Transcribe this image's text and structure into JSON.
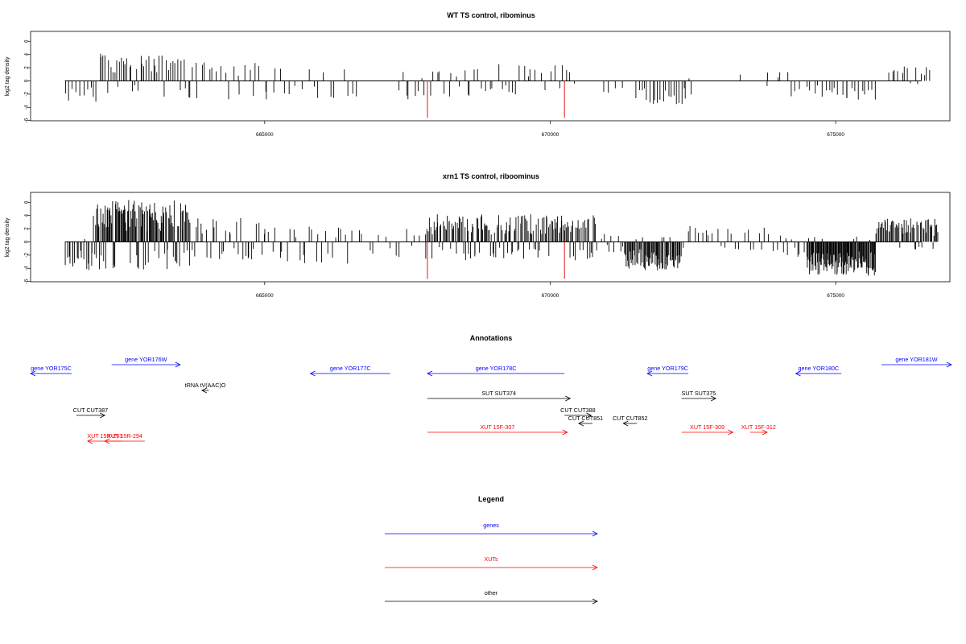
{
  "chart_data": [
    {
      "type": "bar",
      "title": "WT TS control, ribominus",
      "ylabel": "log2 tag density",
      "xlim": [
        660900,
        677000
      ],
      "ylim": [
        -6,
        7
      ],
      "yticks": [
        "6",
        "4",
        "2",
        "0",
        "-2",
        "-4",
        "-6"
      ],
      "xticks": [
        "665000",
        "670000",
        "675000"
      ],
      "grid": false,
      "marked_positions": [
        667850,
        670250
      ],
      "seed": 11,
      "clusters": [
        {
          "start": 661500,
          "end": 662100,
          "count": 10,
          "sense": 0.05,
          "posMax": 2.0,
          "negMax": 3.3
        },
        {
          "start": 662100,
          "end": 662800,
          "count": 22,
          "sense": 0.8,
          "posMax": 4.2,
          "negMax": 2.2
        },
        {
          "start": 662800,
          "end": 663800,
          "count": 26,
          "sense": 0.75,
          "posMax": 4.0,
          "negMax": 2.8
        },
        {
          "start": 663800,
          "end": 665300,
          "count": 22,
          "sense": 0.65,
          "posMax": 2.8,
          "negMax": 2.8
        },
        {
          "start": 665300,
          "end": 666700,
          "count": 14,
          "sense": 0.4,
          "posMax": 1.8,
          "negMax": 2.6
        },
        {
          "start": 667300,
          "end": 667850,
          "count": 8,
          "sense": 0.35,
          "posMax": 1.4,
          "negMax": 2.8
        },
        {
          "start": 667850,
          "end": 669700,
          "count": 28,
          "sense": 0.6,
          "posMax": 2.6,
          "negMax": 2.4
        },
        {
          "start": 669700,
          "end": 670500,
          "count": 10,
          "sense": 0.6,
          "posMax": 2.4,
          "negMax": 1.5
        },
        {
          "start": 670900,
          "end": 671300,
          "count": 4,
          "sense": 0.0,
          "posMax": 0.5,
          "negMax": 1.8
        },
        {
          "start": 671500,
          "end": 672500,
          "count": 22,
          "sense": 0.05,
          "posMax": 0.6,
          "negMax": 3.6
        },
        {
          "start": 673300,
          "end": 673350,
          "count": 1,
          "sense": 1.0,
          "posMax": 2.8,
          "negMax": 0.5
        },
        {
          "start": 673700,
          "end": 674200,
          "count": 5,
          "sense": 0.8,
          "posMax": 1.4,
          "negMax": 0.8
        },
        {
          "start": 674200,
          "end": 674800,
          "count": 8,
          "sense": 0.0,
          "posMax": 0.5,
          "negMax": 2.4
        },
        {
          "start": 674800,
          "end": 675700,
          "count": 16,
          "sense": 0.1,
          "posMax": 0.8,
          "negMax": 2.9
        },
        {
          "start": 675900,
          "end": 676700,
          "count": 14,
          "sense": 0.85,
          "posMax": 2.4,
          "negMax": 0.9
        }
      ]
    },
    {
      "type": "bar",
      "title": "xrn1 TS control, riboominus",
      "ylabel": "log2 tag density",
      "xlim": [
        660900,
        677000
      ],
      "ylim": [
        -6,
        7
      ],
      "yticks": [
        "6",
        "4",
        "2",
        "0",
        "-2",
        "-4",
        "-6"
      ],
      "xticks": [
        "665000",
        "670000",
        "675000"
      ],
      "grid": false,
      "marked_positions": [
        667850,
        670250
      ],
      "seed": 29,
      "clusters": [
        {
          "start": 661500,
          "end": 662000,
          "count": 18,
          "sense": 0.05,
          "posMax": 1.5,
          "negMax": 4.4
        },
        {
          "start": 662000,
          "end": 663700,
          "count": 130,
          "sense": 0.78,
          "posMax": 6.4,
          "negMax": 4.2
        },
        {
          "start": 663700,
          "end": 665000,
          "count": 32,
          "sense": 0.6,
          "posMax": 3.6,
          "negMax": 2.8
        },
        {
          "start": 665000,
          "end": 666500,
          "count": 26,
          "sense": 0.5,
          "posMax": 2.6,
          "negMax": 3.4
        },
        {
          "start": 666500,
          "end": 667800,
          "count": 14,
          "sense": 0.35,
          "posMax": 2.0,
          "negMax": 2.4
        },
        {
          "start": 667800,
          "end": 670800,
          "count": 160,
          "sense": 0.75,
          "posMax": 4.2,
          "negMax": 2.8
        },
        {
          "start": 670800,
          "end": 671300,
          "count": 10,
          "sense": 0.3,
          "posMax": 1.2,
          "negMax": 1.6
        },
        {
          "start": 671300,
          "end": 672300,
          "count": 70,
          "sense": 0.05,
          "posMax": 0.8,
          "negMax": 4.3
        },
        {
          "start": 672300,
          "end": 674000,
          "count": 26,
          "sense": 0.6,
          "posMax": 2.4,
          "negMax": 1.6
        },
        {
          "start": 674000,
          "end": 674500,
          "count": 10,
          "sense": 0.2,
          "posMax": 1.0,
          "negMax": 2.4
        },
        {
          "start": 674500,
          "end": 675700,
          "count": 110,
          "sense": 0.07,
          "posMax": 0.9,
          "negMax": 5.2
        },
        {
          "start": 675700,
          "end": 676800,
          "count": 60,
          "sense": 0.82,
          "posMax": 3.6,
          "negMax": 1.3
        }
      ]
    }
  ],
  "annotations": {
    "title": "Annotations",
    "items": [
      {
        "label": "gene YOR175C",
        "type": "gene",
        "strand": "-",
        "start": 660700,
        "end": 661620,
        "row": 2
      },
      {
        "label": "gene YOR176W",
        "type": "gene",
        "strand": "+",
        "start": 662320,
        "end": 663520,
        "row": 1
      },
      {
        "label": "gene YOR177C",
        "type": "gene",
        "strand": "-",
        "start": 665800,
        "end": 667200,
        "row": 2
      },
      {
        "label": "gene YOR178C",
        "type": "gene",
        "strand": "-",
        "start": 667850,
        "end": 670250,
        "row": 2
      },
      {
        "label": "gene YOR179C",
        "type": "gene",
        "strand": "-",
        "start": 671700,
        "end": 672420,
        "row": 2
      },
      {
        "label": "gene YOR180C",
        "type": "gene",
        "strand": "-",
        "start": 674300,
        "end": 675100,
        "row": 2
      },
      {
        "label": "gene YOR181W",
        "type": "gene",
        "strand": "+",
        "start": 675800,
        "end": 677100,
        "row": 1
      },
      {
        "label": "tRNA tV(AAC)O",
        "type": "other",
        "strand": "-",
        "start": 663900,
        "end": 664020,
        "row": 3
      },
      {
        "label": "SUT SUT374",
        "type": "other",
        "strand": "+",
        "start": 667850,
        "end": 670350,
        "row": 4
      },
      {
        "label": "SUT SUT375",
        "type": "other",
        "strand": "+",
        "start": 672300,
        "end": 672900,
        "row": 4
      },
      {
        "label": "CUT CUT387",
        "type": "other",
        "strand": "+",
        "start": 661700,
        "end": 662200,
        "row": 5
      },
      {
        "label": "CUT CUT388",
        "type": "other",
        "strand": "+",
        "start": 670250,
        "end": 670720,
        "row": 5
      },
      {
        "label": "CUT CUT851",
        "type": "other",
        "strand": "-",
        "start": 670500,
        "end": 670740,
        "row": 6
      },
      {
        "label": "CUT CUT852",
        "type": "other",
        "strand": "-",
        "start": 671280,
        "end": 671520,
        "row": 6
      },
      {
        "label": "XUT 15F-307",
        "type": "xut",
        "strand": "+",
        "start": 667850,
        "end": 670300,
        "row": 7
      },
      {
        "label": "XUT 15F-309",
        "type": "xut",
        "strand": "+",
        "start": 672300,
        "end": 673200,
        "row": 7
      },
      {
        "label": "XUT 15F-312",
        "type": "xut",
        "strand": "+",
        "start": 673500,
        "end": 673800,
        "row": 7
      },
      {
        "label": "XUT 15R-293",
        "type": "xut",
        "strand": "-",
        "start": 661900,
        "end": 662500,
        "row": 8
      },
      {
        "label": "XUT 15R-294",
        "type": "xut",
        "strand": "-",
        "start": 662200,
        "end": 662900,
        "row": 8
      }
    ]
  },
  "legend": {
    "title": "Legend",
    "items": [
      {
        "label": "genes",
        "type": "gene"
      },
      {
        "label": "XUTs",
        "type": "xut"
      },
      {
        "label": "other",
        "type": "other"
      }
    ]
  },
  "colors": {
    "gene": "#0000ff",
    "xut": "#ff0000",
    "other": "#000000",
    "bars": "#000000",
    "marker": "#e31a1c"
  }
}
